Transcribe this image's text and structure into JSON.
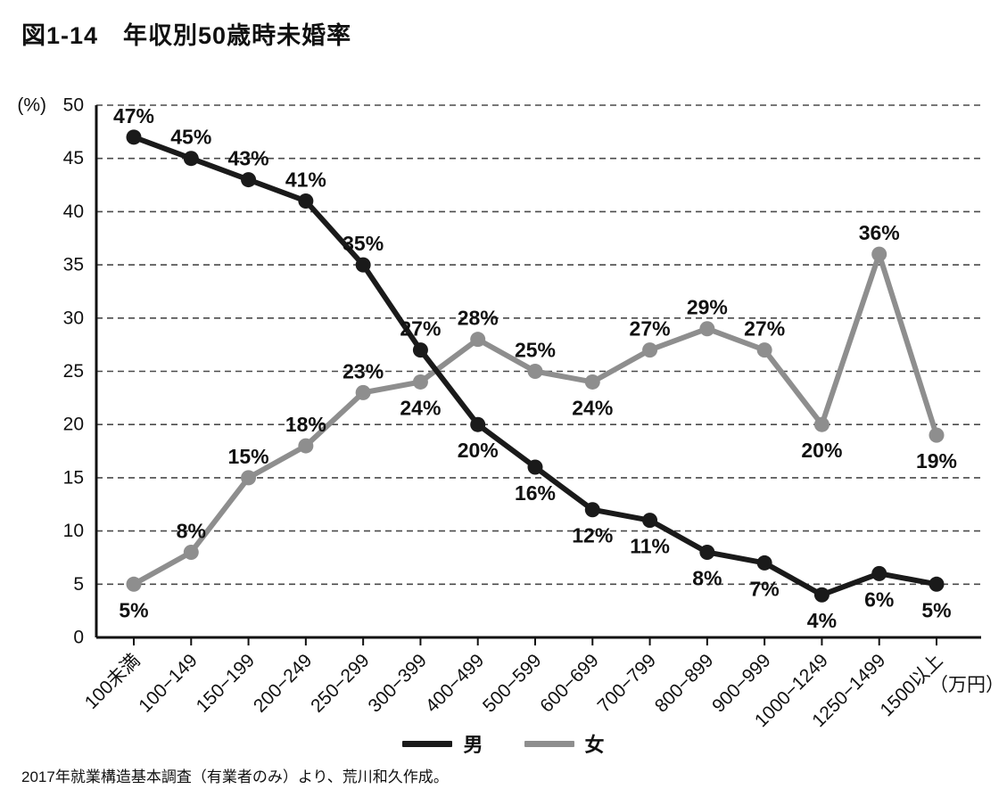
{
  "title": "図1-14　年収別50歳時未婚率",
  "source_note": "2017年就業構造基本調査（有業者のみ）より、荒川和久作成。",
  "chart_data": {
    "type": "line",
    "title": "図1-14　年収別50歳時未婚率",
    "categories": [
      "100未満",
      "100−149",
      "150−199",
      "200−249",
      "250−299",
      "300−399",
      "400−499",
      "500−599",
      "600−699",
      "700−799",
      "800−899",
      "900−999",
      "1000−1249",
      "1250−1499",
      "1500以上"
    ],
    "x_unit": "（万円）",
    "ylabel": "(%)",
    "ylim": [
      0,
      50
    ],
    "ytick_step": 5,
    "grid": "dashed-horizontal",
    "legend_position": "bottom-center",
    "series": [
      {
        "key": "men",
        "name": "男",
        "color": "#1a1a1a",
        "values": [
          47,
          45,
          43,
          41,
          35,
          27,
          20,
          16,
          12,
          11,
          8,
          7,
          4,
          6,
          5
        ],
        "label_pos": [
          "above",
          "above",
          "above",
          "above",
          "above",
          "above",
          "below",
          "below",
          "below",
          "below",
          "below",
          "below",
          "below",
          "below",
          "below"
        ]
      },
      {
        "key": "women",
        "name": "女",
        "color": "#8e8e8e",
        "values": [
          5,
          8,
          15,
          18,
          23,
          24,
          28,
          25,
          24,
          27,
          29,
          27,
          20,
          36,
          19
        ],
        "label_pos": [
          "below",
          "above",
          "above",
          "above",
          "above",
          "below",
          "above",
          "above",
          "below",
          "above",
          "above",
          "above",
          "below",
          "above",
          "below"
        ]
      }
    ]
  }
}
